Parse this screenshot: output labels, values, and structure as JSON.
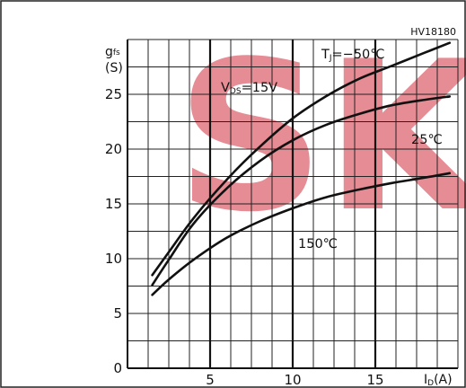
{
  "chart_data": {
    "type": "line",
    "figure_id": "HV18180",
    "ylabel": {
      "symbol": "g",
      "subscript": "fs",
      "unit": "(S)"
    },
    "xlabel": {
      "symbol": "I",
      "subscript": "D",
      "unit": "(A)"
    },
    "condition": {
      "symbol": "V",
      "subscript": "DS",
      "value": "=15V"
    },
    "xlim": [
      0,
      20
    ],
    "ylim": [
      0,
      30
    ],
    "x_ticks": [
      5,
      10,
      15
    ],
    "y_ticks": [
      0,
      5,
      10,
      15,
      20,
      25
    ],
    "x_grid_step": 1.25,
    "y_grid_step": 2.5,
    "series": [
      {
        "name": "TJ=-50℃",
        "label_parts": {
          "symbol": "T",
          "subscript": "J",
          "value": "=−50℃"
        },
        "x": [
          1.5,
          2.5,
          4,
          6,
          8,
          10,
          12,
          14,
          16,
          18,
          19.5
        ],
        "y": [
          8.5,
          10.6,
          13.7,
          17.2,
          20.2,
          22.8,
          24.8,
          26.4,
          27.6,
          28.8,
          29.7
        ]
      },
      {
        "name": "25℃",
        "label_parts": {
          "symbol": "",
          "subscript": "",
          "value": "25℃"
        },
        "x": [
          1.5,
          2.5,
          4,
          6,
          8,
          10,
          12,
          14,
          16,
          18,
          19.5
        ],
        "y": [
          7.6,
          9.9,
          13.2,
          16.4,
          18.9,
          20.8,
          22.2,
          23.2,
          24.0,
          24.5,
          24.8
        ]
      },
      {
        "name": "150℃",
        "label_parts": {
          "symbol": "",
          "subscript": "",
          "value": "150℃"
        },
        "x": [
          1.5,
          2.5,
          4,
          6,
          8,
          10,
          12,
          14,
          16,
          18,
          19.5
        ],
        "y": [
          6.7,
          8.1,
          9.9,
          11.9,
          13.4,
          14.6,
          15.6,
          16.3,
          16.9,
          17.4,
          17.8
        ]
      }
    ]
  },
  "watermark": {
    "text": "SKI",
    "color": "#e0707a"
  }
}
